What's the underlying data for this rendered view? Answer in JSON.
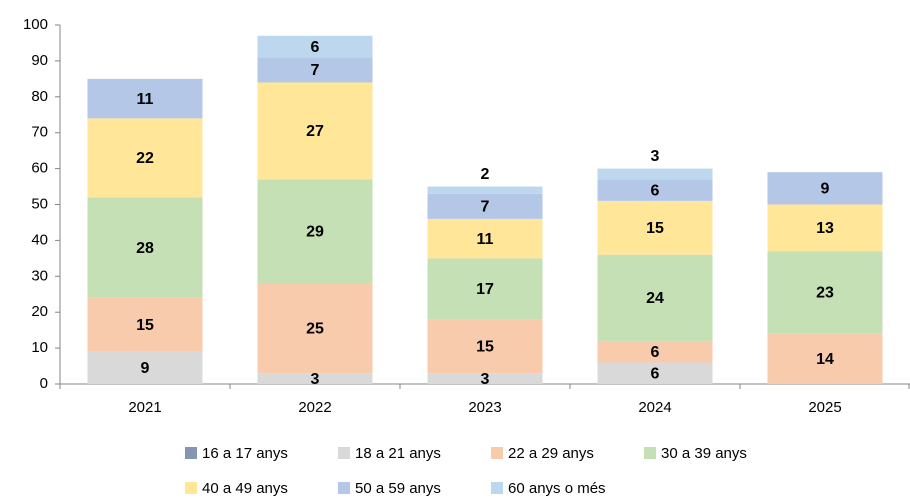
{
  "chart_data": {
    "type": "stacked_bar",
    "categories": [
      "2021",
      "2022",
      "2023",
      "2024",
      "2025"
    ],
    "series": [
      {
        "name": "16 a 17 anys",
        "color": "#8497b0",
        "values": [
          null,
          null,
          null,
          null,
          null
        ]
      },
      {
        "name": "18 a 21 anys",
        "color": "#d9d9d9",
        "values": [
          9,
          3,
          3,
          6,
          null
        ]
      },
      {
        "name": "22 a 29 anys",
        "color": "#f8cbad",
        "values": [
          15,
          25,
          15,
          6,
          14
        ]
      },
      {
        "name": "30 a 39 anys",
        "color": "#c5e0b4",
        "values": [
          28,
          29,
          17,
          24,
          23
        ]
      },
      {
        "name": "40 a 49 anys",
        "color": "#ffe699",
        "values": [
          22,
          27,
          11,
          15,
          13
        ]
      },
      {
        "name": "50 a 59 anys",
        "color": "#b4c7e7",
        "values": [
          11,
          7,
          7,
          6,
          9
        ]
      },
      {
        "name": "60 anys o més",
        "color": "#bdd7ee",
        "values": [
          null,
          6,
          2,
          3,
          null
        ]
      }
    ],
    "ylim": [
      0,
      100
    ],
    "yticks": [
      0,
      10,
      20,
      30,
      40,
      50,
      60,
      70,
      80,
      90,
      100
    ],
    "legend": "bottom"
  }
}
